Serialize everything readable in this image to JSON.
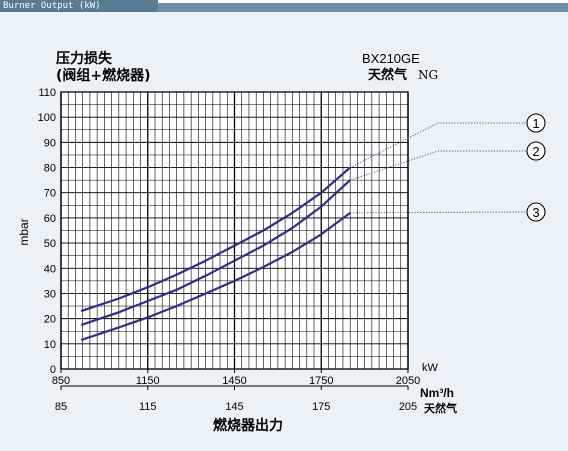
{
  "header": {
    "title": "Burner Output (kW)"
  },
  "colors": {
    "curve": "#2e2f86",
    "leader": "#3f5fb0",
    "grid": "#000000",
    "background": "#eaf2f8"
  },
  "chart_data": {
    "type": "line",
    "title_left": [
      "压力损失",
      "(阀组+燃烧器)"
    ],
    "title_right": [
      "BX210GE",
      "天然气"
    ],
    "title_right_suffix": "NG",
    "ylabel": "mbar",
    "xlabel": "燃烧器出力",
    "x_unit_top": "kW",
    "x_unit_bottom": "Nm³/h",
    "x_unit_bottom_sub": "天然气",
    "xlim": [
      850,
      2050
    ],
    "ylim": [
      0,
      110
    ],
    "x_ticks": [
      "850",
      "1150",
      "1450",
      "1750",
      "2050"
    ],
    "x2_ticks": [
      "85",
      "115",
      "145",
      "175",
      "205"
    ],
    "y_ticks": [
      "0",
      "10",
      "20",
      "30",
      "40",
      "50",
      "60",
      "70",
      "80",
      "90",
      "100",
      "110"
    ],
    "grid": true,
    "series": [
      {
        "name": "1",
        "x": [
          920,
          1050,
          1150,
          1250,
          1350,
          1450,
          1550,
          1650,
          1750,
          1850
        ],
        "y": [
          23,
          28,
          32.5,
          37.5,
          43,
          49,
          55,
          62,
          70,
          80
        ]
      },
      {
        "name": "2",
        "x": [
          920,
          1050,
          1150,
          1250,
          1350,
          1450,
          1550,
          1650,
          1750,
          1850
        ],
        "y": [
          17.5,
          22.5,
          27,
          31.5,
          37,
          43,
          49,
          56,
          64.5,
          75
        ]
      },
      {
        "name": "3",
        "x": [
          920,
          1050,
          1150,
          1250,
          1350,
          1450,
          1550,
          1650,
          1750,
          1850
        ],
        "y": [
          11.5,
          16.5,
          20.5,
          25,
          30,
          35,
          40.5,
          46.5,
          53.5,
          62
        ]
      }
    ]
  }
}
